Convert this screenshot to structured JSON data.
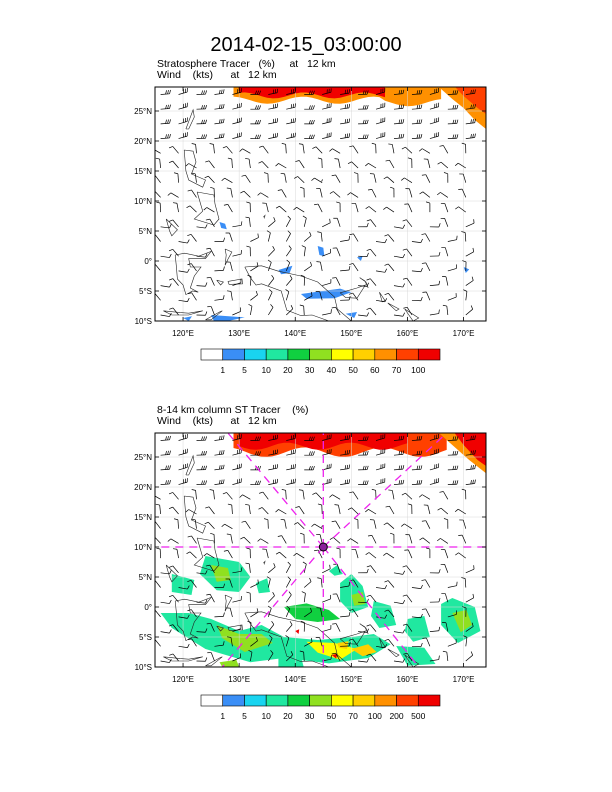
{
  "page": {
    "title": "2014-02-15_03:00:00"
  },
  "chart_data": [
    {
      "type": "heatmap",
      "title": "Stratosphere Tracer   (%)     at   12 km",
      "subtitle": "Wind    (kts)      at   12 km",
      "lon_range": [
        115,
        174
      ],
      "lat_range": [
        -10,
        29
      ],
      "x_ticks": [
        {
          "value": 120,
          "label": "120°E"
        },
        {
          "value": 130,
          "label": "130°E"
        },
        {
          "value": 140,
          "label": "140°E"
        },
        {
          "value": 150,
          "label": "150°E"
        },
        {
          "value": 160,
          "label": "160°E"
        },
        {
          "value": 170,
          "label": "170°E"
        }
      ],
      "y_ticks": [
        {
          "value": 25,
          "label": "25°N"
        },
        {
          "value": 20,
          "label": "20°N"
        },
        {
          "value": 15,
          "label": "15°N"
        },
        {
          "value": 10,
          "label": "10°N"
        },
        {
          "value": 5,
          "label": "5°N"
        },
        {
          "value": 0,
          "label": "0°"
        },
        {
          "value": -5,
          "label": "5°S"
        },
        {
          "value": -10,
          "label": "10°S"
        }
      ],
      "colorbar": {
        "labels": [
          "1",
          "5",
          "10",
          "20",
          "30",
          "40",
          "50",
          "60",
          "70",
          "100"
        ],
        "colors": [
          "#ffffff",
          "#3a8ef6",
          "#19d4f0",
          "#20e8a0",
          "#10d040",
          "#90e020",
          "#ffff00",
          "#ffd000",
          "#ff9000",
          "#ff4000",
          "#f00000"
        ]
      },
      "features": [
        {
          "name": "stratospheric-intrusion",
          "level": 100,
          "note": "high tracer band along northern edge 129-166E"
        },
        {
          "name": "small-patches",
          "level": 5,
          "note": "scattered low values south of equator"
        }
      ],
      "cross_section": false
    },
    {
      "type": "heatmap",
      "title": "8-14 km column ST Tracer    (%)",
      "subtitle": "Wind    (kts)      at   12 km",
      "lon_range": [
        115,
        174
      ],
      "lat_range": [
        -10,
        29
      ],
      "x_ticks": [
        {
          "value": 120,
          "label": "120°E"
        },
        {
          "value": 130,
          "label": "130°E"
        },
        {
          "value": 140,
          "label": "140°E"
        },
        {
          "value": 150,
          "label": "150°E"
        },
        {
          "value": 160,
          "label": "160°E"
        },
        {
          "value": 170,
          "label": "170°E"
        }
      ],
      "y_ticks": [
        {
          "value": 25,
          "label": "25°N"
        },
        {
          "value": 20,
          "label": "20°N"
        },
        {
          "value": 15,
          "label": "15°N"
        },
        {
          "value": 10,
          "label": "10°N"
        },
        {
          "value": 5,
          "label": "5°N"
        },
        {
          "value": 0,
          "label": "0°"
        },
        {
          "value": -5,
          "label": "5°S"
        },
        {
          "value": -10,
          "label": "10°S"
        }
      ],
      "colorbar": {
        "labels": [
          "1",
          "5",
          "10",
          "20",
          "30",
          "50",
          "70",
          "100",
          "200",
          "500"
        ],
        "colors": [
          "#ffffff",
          "#3a8ef6",
          "#19d4f0",
          "#20e8a0",
          "#10d040",
          "#90e020",
          "#ffff00",
          "#ffd000",
          "#ff9000",
          "#ff4000",
          "#f00000"
        ]
      },
      "features": [
        {
          "name": "stratospheric-intrusion",
          "level": 500,
          "note": "high column tracer along northern edge 129-167E"
        },
        {
          "name": "tropical-patches",
          "level": 50,
          "note": "widespread patches 125-172E, 8N-10S"
        }
      ],
      "cross_section": true,
      "cross_center": {
        "lon": 145,
        "lat": 10
      }
    }
  ]
}
